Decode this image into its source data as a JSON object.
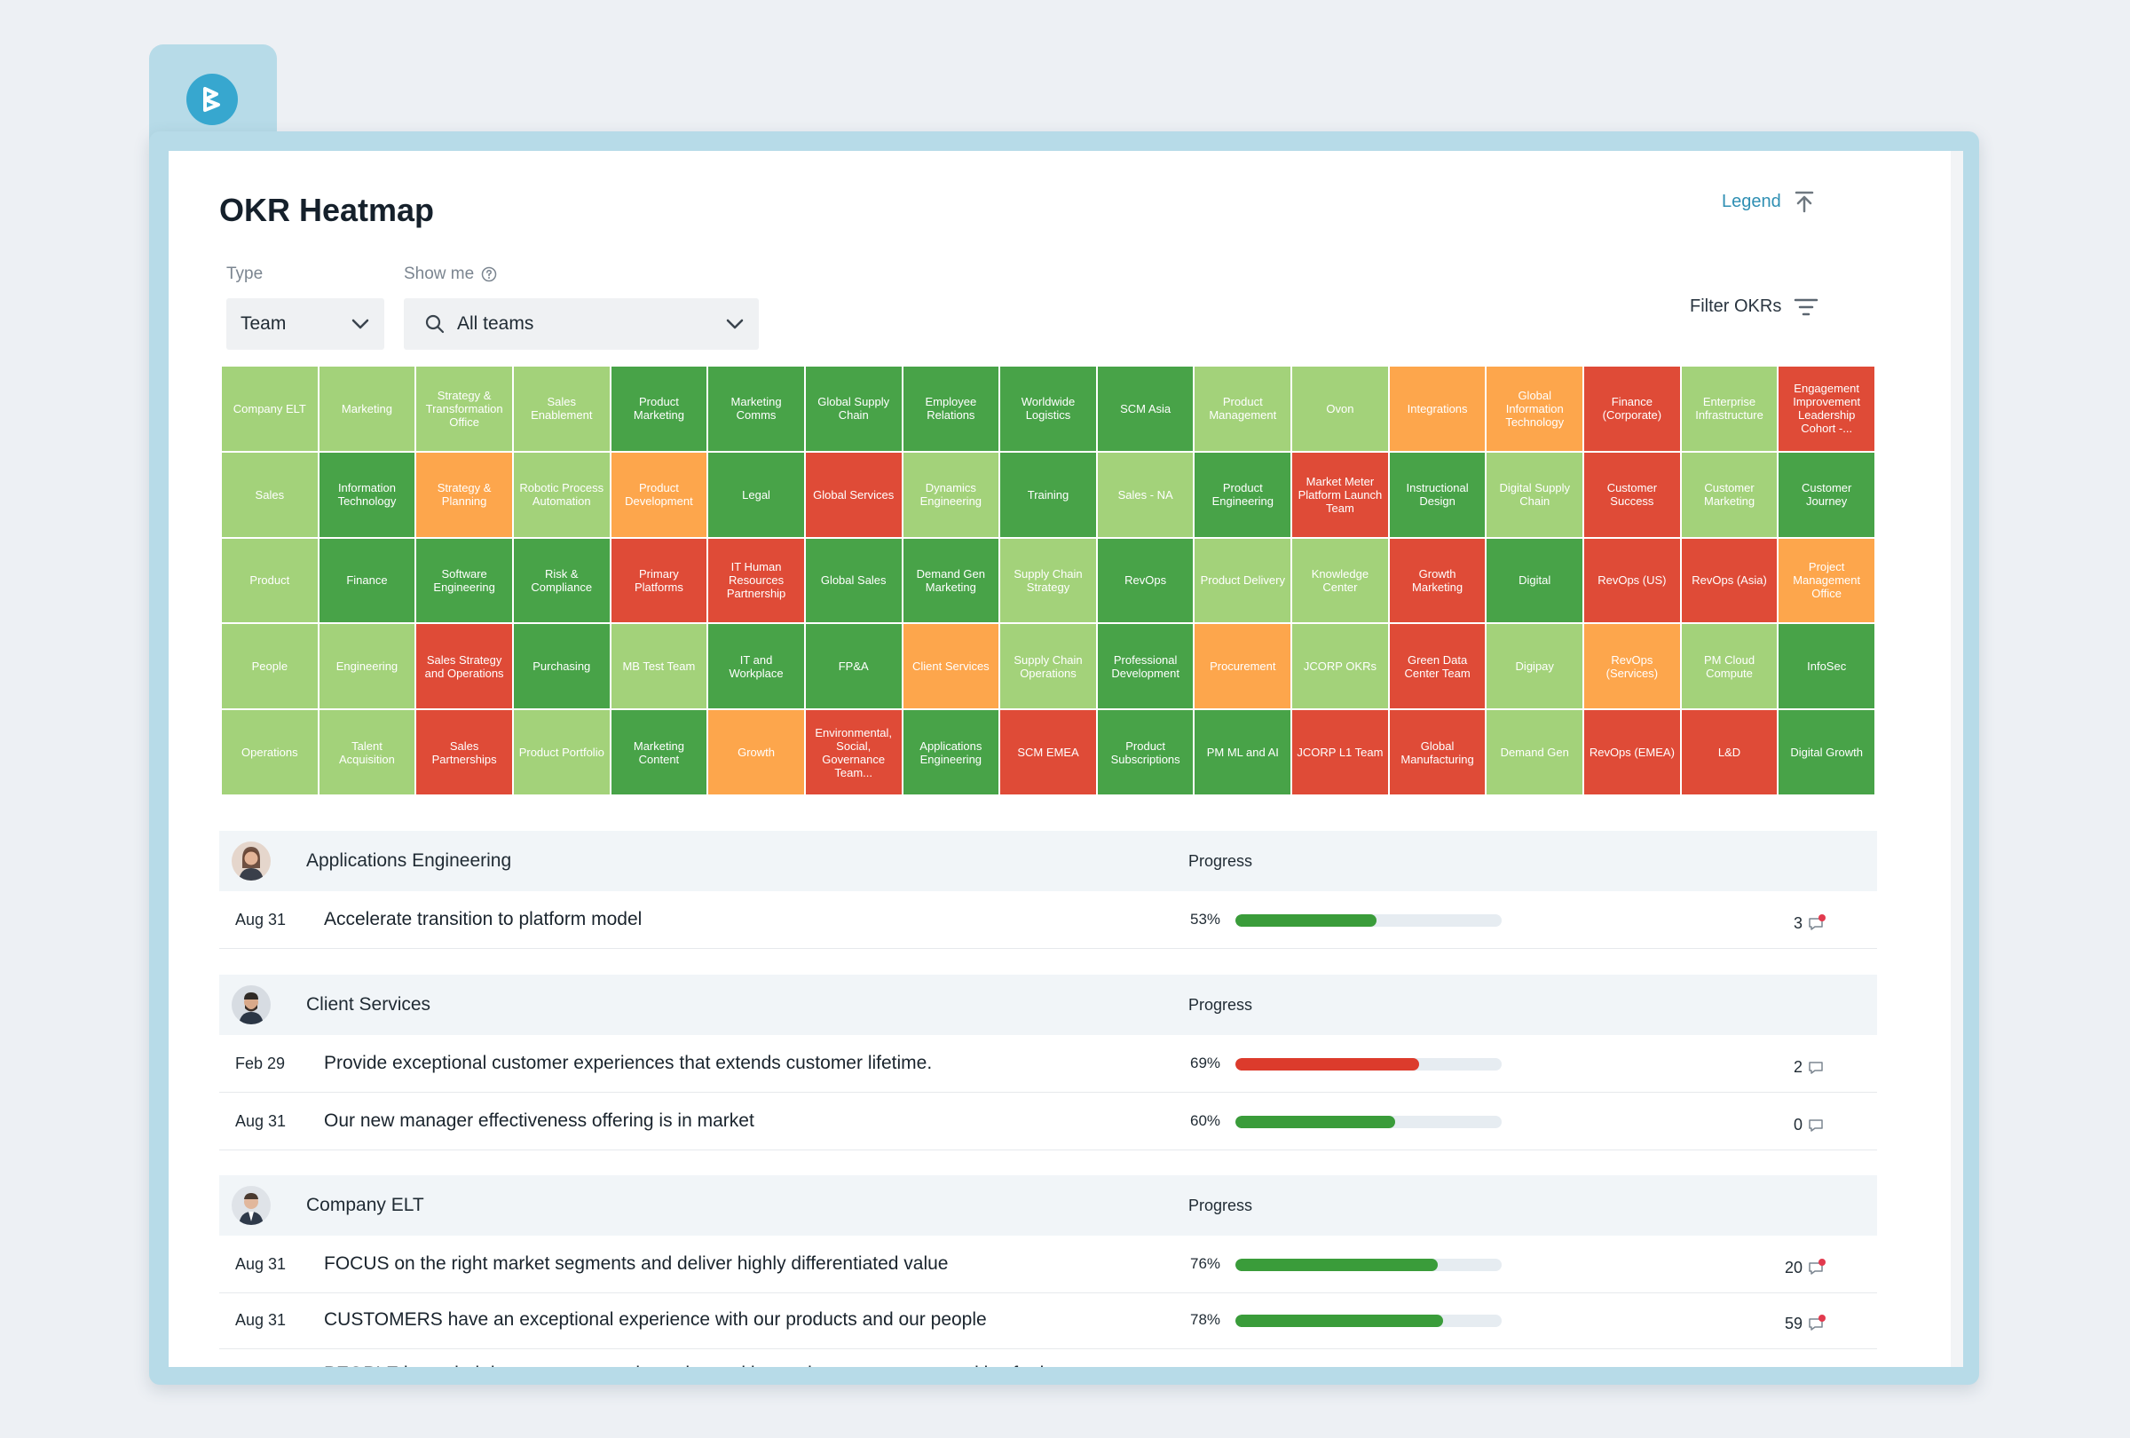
{
  "page": {
    "title": "OKR Heatmap"
  },
  "legend": {
    "label": "Legend"
  },
  "filters": {
    "type_label": "Type",
    "type_value": "Team",
    "show_label": "Show me",
    "show_value": "All teams",
    "filter_okrs": "Filter OKRs"
  },
  "colors": {
    "light_green": "#a3d27a",
    "dark_green": "#48a348",
    "orange": "#fda64c",
    "red": "#df4b37",
    "accent": "#2f8fb3"
  },
  "heatmap": {
    "cells": [
      {
        "label": "Company ELT",
        "status": "lg"
      },
      {
        "label": "Marketing",
        "status": "lg"
      },
      {
        "label": "Strategy & Transformation Office",
        "status": "lg"
      },
      {
        "label": "Sales Enablement",
        "status": "lg"
      },
      {
        "label": "Product Marketing",
        "status": "dg"
      },
      {
        "label": "Marketing Comms",
        "status": "dg"
      },
      {
        "label": "Global Supply Chain",
        "status": "dg"
      },
      {
        "label": "Employee Relations",
        "status": "dg"
      },
      {
        "label": "Worldwide Logistics",
        "status": "dg"
      },
      {
        "label": "SCM Asia",
        "status": "dg"
      },
      {
        "label": "Product Management",
        "status": "lg"
      },
      {
        "label": "Ovon",
        "status": "lg"
      },
      {
        "label": "Integrations",
        "status": "or"
      },
      {
        "label": "Global Information Technology",
        "status": "or"
      },
      {
        "label": "Finance (Corporate)",
        "status": "rd"
      },
      {
        "label": "Enterprise Infrastructure",
        "status": "lg"
      },
      {
        "label": "Engagement Improvement Leadership Cohort -...",
        "status": "rd"
      },
      {
        "label": "Sales",
        "status": "lg"
      },
      {
        "label": "Information Technology",
        "status": "dg"
      },
      {
        "label": "Strategy & Planning",
        "status": "or"
      },
      {
        "label": "Robotic Process Automation",
        "status": "lg"
      },
      {
        "label": "Product Development",
        "status": "or"
      },
      {
        "label": "Legal",
        "status": "dg"
      },
      {
        "label": "Global Services",
        "status": "rd"
      },
      {
        "label": "Dynamics Engineering",
        "status": "lg"
      },
      {
        "label": "Training",
        "status": "dg"
      },
      {
        "label": "Sales - NA",
        "status": "lg"
      },
      {
        "label": "Product Engineering",
        "status": "dg"
      },
      {
        "label": "Market Meter Platform Launch Team",
        "status": "rd"
      },
      {
        "label": "Instructional Design",
        "status": "dg"
      },
      {
        "label": "Digital Supply Chain",
        "status": "lg"
      },
      {
        "label": "Customer Success",
        "status": "rd"
      },
      {
        "label": "Customer Marketing",
        "status": "lg"
      },
      {
        "label": "Customer Journey",
        "status": "dg"
      },
      {
        "label": "Product",
        "status": "lg"
      },
      {
        "label": "Finance",
        "status": "dg"
      },
      {
        "label": "Software Engineering",
        "status": "dg"
      },
      {
        "label": "Risk & Compliance",
        "status": "dg"
      },
      {
        "label": "Primary Platforms",
        "status": "rd"
      },
      {
        "label": "IT Human Resources Partnership",
        "status": "rd"
      },
      {
        "label": "Global Sales",
        "status": "dg"
      },
      {
        "label": "Demand Gen Marketing",
        "status": "dg"
      },
      {
        "label": "Supply Chain Strategy",
        "status": "lg"
      },
      {
        "label": "RevOps",
        "status": "dg"
      },
      {
        "label": "Product Delivery",
        "status": "lg"
      },
      {
        "label": "Knowledge Center",
        "status": "lg"
      },
      {
        "label": "Growth Marketing",
        "status": "rd"
      },
      {
        "label": "Digital",
        "status": "dg"
      },
      {
        "label": "RevOps (US)",
        "status": "rd"
      },
      {
        "label": "RevOps (Asia)",
        "status": "rd"
      },
      {
        "label": "Project Management Office",
        "status": "or"
      },
      {
        "label": "People",
        "status": "lg"
      },
      {
        "label": "Engineering",
        "status": "lg"
      },
      {
        "label": "Sales Strategy and Operations",
        "status": "rd"
      },
      {
        "label": "Purchasing",
        "status": "dg"
      },
      {
        "label": "MB Test Team",
        "status": "lg"
      },
      {
        "label": "IT and Workplace",
        "status": "dg"
      },
      {
        "label": "FP&A",
        "status": "dg"
      },
      {
        "label": "Client Services",
        "status": "or"
      },
      {
        "label": "Supply Chain Operations",
        "status": "lg"
      },
      {
        "label": "Professional Development",
        "status": "dg"
      },
      {
        "label": "Procurement",
        "status": "or"
      },
      {
        "label": "JCORP OKRs",
        "status": "lg"
      },
      {
        "label": "Green Data Center Team",
        "status": "rd"
      },
      {
        "label": "Digipay",
        "status": "lg"
      },
      {
        "label": "RevOps (Services)",
        "status": "or"
      },
      {
        "label": "PM Cloud Compute",
        "status": "lg"
      },
      {
        "label": "InfoSec",
        "status": "dg"
      },
      {
        "label": "Operations",
        "status": "lg"
      },
      {
        "label": "Talent Acquisition",
        "status": "lg"
      },
      {
        "label": "Sales Partnerships",
        "status": "rd"
      },
      {
        "label": "Product Portfolio",
        "status": "lg"
      },
      {
        "label": "Marketing Content",
        "status": "dg"
      },
      {
        "label": "Growth",
        "status": "or"
      },
      {
        "label": "Environmental, Social, Governance Team...",
        "status": "rd"
      },
      {
        "label": "Applications Engineering",
        "status": "dg"
      },
      {
        "label": "SCM EMEA",
        "status": "rd"
      },
      {
        "label": "Product Subscriptions",
        "status": "dg"
      },
      {
        "label": "PM ML and AI",
        "status": "dg"
      },
      {
        "label": "JCORP L1 Team",
        "status": "rd"
      },
      {
        "label": "Global Manufacturing",
        "status": "rd"
      },
      {
        "label": "Demand Gen",
        "status": "lg"
      },
      {
        "label": "RevOps (EMEA)",
        "status": "rd"
      },
      {
        "label": "L&D",
        "status": "rd"
      },
      {
        "label": "Digital Growth",
        "status": "dg"
      }
    ]
  },
  "groups": [
    {
      "name": "Applications Engineering",
      "progress_label": "Progress",
      "okrs": [
        {
          "date": "Aug 31",
          "title": "Accelerate transition to platform model",
          "progress": "53%",
          "value": 53,
          "bar_color": "#3a9c3a",
          "comments": "3",
          "unread": true
        }
      ]
    },
    {
      "name": "Client Services",
      "progress_label": "Progress",
      "okrs": [
        {
          "date": "Feb 29",
          "title": "Provide exceptional customer experiences that extends customer lifetime.",
          "progress": "69%",
          "value": 69,
          "bar_color": "#dc3b2c",
          "comments": "2",
          "unread": false
        },
        {
          "date": "Aug 31",
          "title": "Our new manager effectiveness offering is in market",
          "progress": "60%",
          "value": 60,
          "bar_color": "#3a9c3a",
          "comments": "0",
          "unread": false
        }
      ]
    },
    {
      "name": "Company ELT",
      "progress_label": "Progress",
      "okrs": [
        {
          "date": "Aug 31",
          "title": "FOCUS on the right market segments and deliver highly differentiated value",
          "progress": "76%",
          "value": 76,
          "bar_color": "#3a9c3a",
          "comments": "20",
          "unread": true
        },
        {
          "date": "Aug 31",
          "title": "CUSTOMERS have an exceptional experience with our products and our people",
          "progress": "78%",
          "value": 78,
          "bar_color": "#3a9c3a",
          "comments": "59",
          "unread": true
        },
        {
          "date": "",
          "title": "PEOPLE have their best career experience here with equal access to opportunities for impact",
          "progress": "",
          "value": 0,
          "bar_color": "#3a9c3a",
          "comments": "",
          "unread": false
        }
      ]
    }
  ]
}
